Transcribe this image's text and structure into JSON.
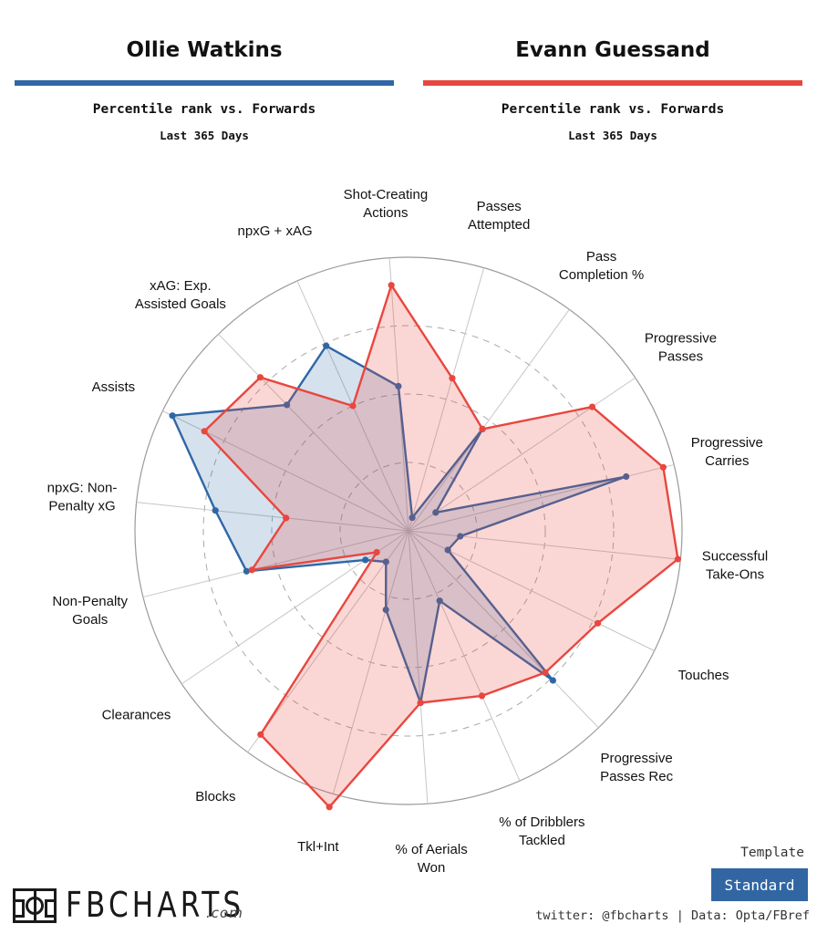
{
  "header": {
    "player1": {
      "name": "Ollie Watkins",
      "color": "#2f67a6"
    },
    "player2": {
      "name": "Evann Guessand",
      "color": "#e8473f"
    },
    "subtitle": "Percentile rank vs. Forwards",
    "period": "Last 365 Days"
  },
  "chart_data": {
    "type": "radar",
    "scale_max": 100,
    "gridlines": true,
    "categories": [
      "Shot-Creating Actions",
      "Passes Attempted",
      "Pass Completion %",
      "Progressive Passes",
      "Progressive Carries",
      "Successful Take-Ons",
      "Touches",
      "Progressive Passes Rec",
      "% of Dribblers Tackled",
      "% of Aerials Won",
      "Tkl+Int",
      "Blocks",
      "Clearances",
      "Non-Penalty Goals",
      "npxG: Non-Penalty xG",
      "Assists",
      "xAG: Exp. Assisted Goals",
      "npxG + xAG"
    ],
    "label_lines": [
      [
        "Shot-Creating",
        "Actions"
      ],
      [
        "Passes",
        "Attempted"
      ],
      [
        "Pass",
        "Completion %"
      ],
      [
        "Progressive",
        "Passes"
      ],
      [
        "Progressive",
        "Carries"
      ],
      [
        "Successful",
        "Take-Ons"
      ],
      [
        "Touches"
      ],
      [
        "Progressive",
        "Passes Rec"
      ],
      [
        "% of Dribblers",
        "Tackled"
      ],
      [
        "% of Aerials",
        "Won"
      ],
      [
        "Tkl+Int"
      ],
      [
        "Blocks"
      ],
      [
        "Clearances"
      ],
      [
        "Non-Penalty",
        "Goals"
      ],
      [
        "npxG: Non-",
        "Penalty xG"
      ],
      [
        "Assists"
      ],
      [
        "xAG: Exp.",
        "Assisted Goals"
      ],
      [
        "npxG + xAG"
      ]
    ],
    "series": [
      {
        "name": "Ollie Watkins",
        "color": "#2f67a6",
        "values": [
          53,
          5,
          46,
          12,
          82,
          19,
          16,
          76,
          28,
          63,
          30,
          14,
          19,
          61,
          71,
          96,
          64,
          74
        ]
      },
      {
        "name": "Evann Guessand",
        "color": "#e8473f",
        "values": [
          90,
          58,
          46,
          81,
          96,
          99,
          77,
          72,
          66,
          63,
          105,
          92,
          14,
          59,
          45,
          83,
          78,
          50
        ]
      }
    ]
  },
  "footer": {
    "logo_text": "FBCHARTS",
    "logo_suffix": ".com",
    "template_label": "Template",
    "template_value": "Standard",
    "credit": "twitter: @fbcharts | Data: Opta/FBref",
    "badge_color": "#3166a3"
  }
}
